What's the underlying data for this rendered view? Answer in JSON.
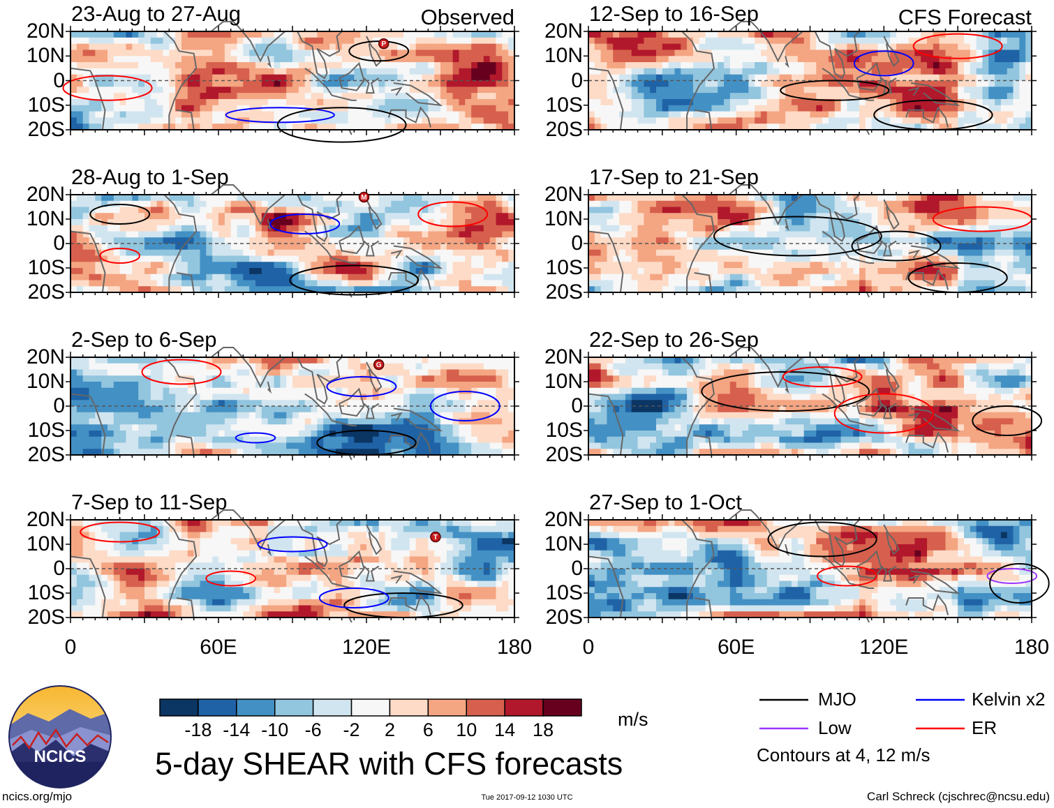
{
  "chart_data": {
    "type": "heatmap",
    "title": "5-day SHEAR with CFS forecasts",
    "units": "m/s",
    "x_axis": {
      "range": [
        0,
        180
      ],
      "ticks": [
        "0",
        "60E",
        "120E",
        "180"
      ]
    },
    "y_axis": {
      "range": [
        -20,
        20
      ],
      "ticks": [
        "20N",
        "10N",
        "0",
        "10S",
        "20S"
      ]
    },
    "colorbar": {
      "labels": [
        "-18",
        "-14",
        "-10",
        "-6",
        "-2",
        "2",
        "6",
        "10",
        "14",
        "18"
      ],
      "colors": [
        "#0b3563",
        "#1f63a6",
        "#4390c4",
        "#92c5de",
        "#d1e5f0",
        "#f7f7f7",
        "#fddbc7",
        "#f4a582",
        "#d6604d",
        "#b2182b",
        "#67001f"
      ]
    },
    "panels": [
      {
        "period": "23-Aug to 27-Aug",
        "tag": "Observed",
        "storms": [
          {
            "letter": "P",
            "lon": 127,
            "lat": 15
          }
        ]
      },
      {
        "period": "28-Aug to 1-Sep",
        "tag": "",
        "storms": [
          {
            "letter": "M",
            "lon": 119,
            "lat": 19
          }
        ]
      },
      {
        "period": "2-Sep to 6-Sep",
        "tag": "",
        "storms": [
          {
            "letter": "G",
            "lon": 125,
            "lat": 17
          }
        ]
      },
      {
        "period": "7-Sep to 11-Sep",
        "tag": "",
        "storms": [
          {
            "letter": "T",
            "lon": 148,
            "lat": 13
          }
        ]
      },
      {
        "period": "12-Sep to 16-Sep",
        "tag": "CFS Forecast",
        "storms": []
      },
      {
        "period": "17-Sep to 21-Sep",
        "tag": "",
        "storms": []
      },
      {
        "period": "22-Sep to 26-Sep",
        "tag": "",
        "storms": []
      },
      {
        "period": "27-Sep to 1-Oct",
        "tag": "",
        "storms": []
      }
    ],
    "legend": [
      {
        "label": "MJO",
        "color": "#000000"
      },
      {
        "label": "Kelvin x2",
        "color": "#0000ff"
      },
      {
        "label": "Low",
        "color": "#9933ff"
      },
      {
        "label": "ER",
        "color": "#ff0000"
      }
    ],
    "contour_note": "Contours at 4, 12 m/s"
  },
  "logo": {
    "text": "NCICS"
  },
  "footer": {
    "left": "ncics.org/mjo",
    "center": "Tue 2017-09-12 1030 UTC",
    "right": "Carl Schreck (cjschrec@ncsu.edu)"
  }
}
